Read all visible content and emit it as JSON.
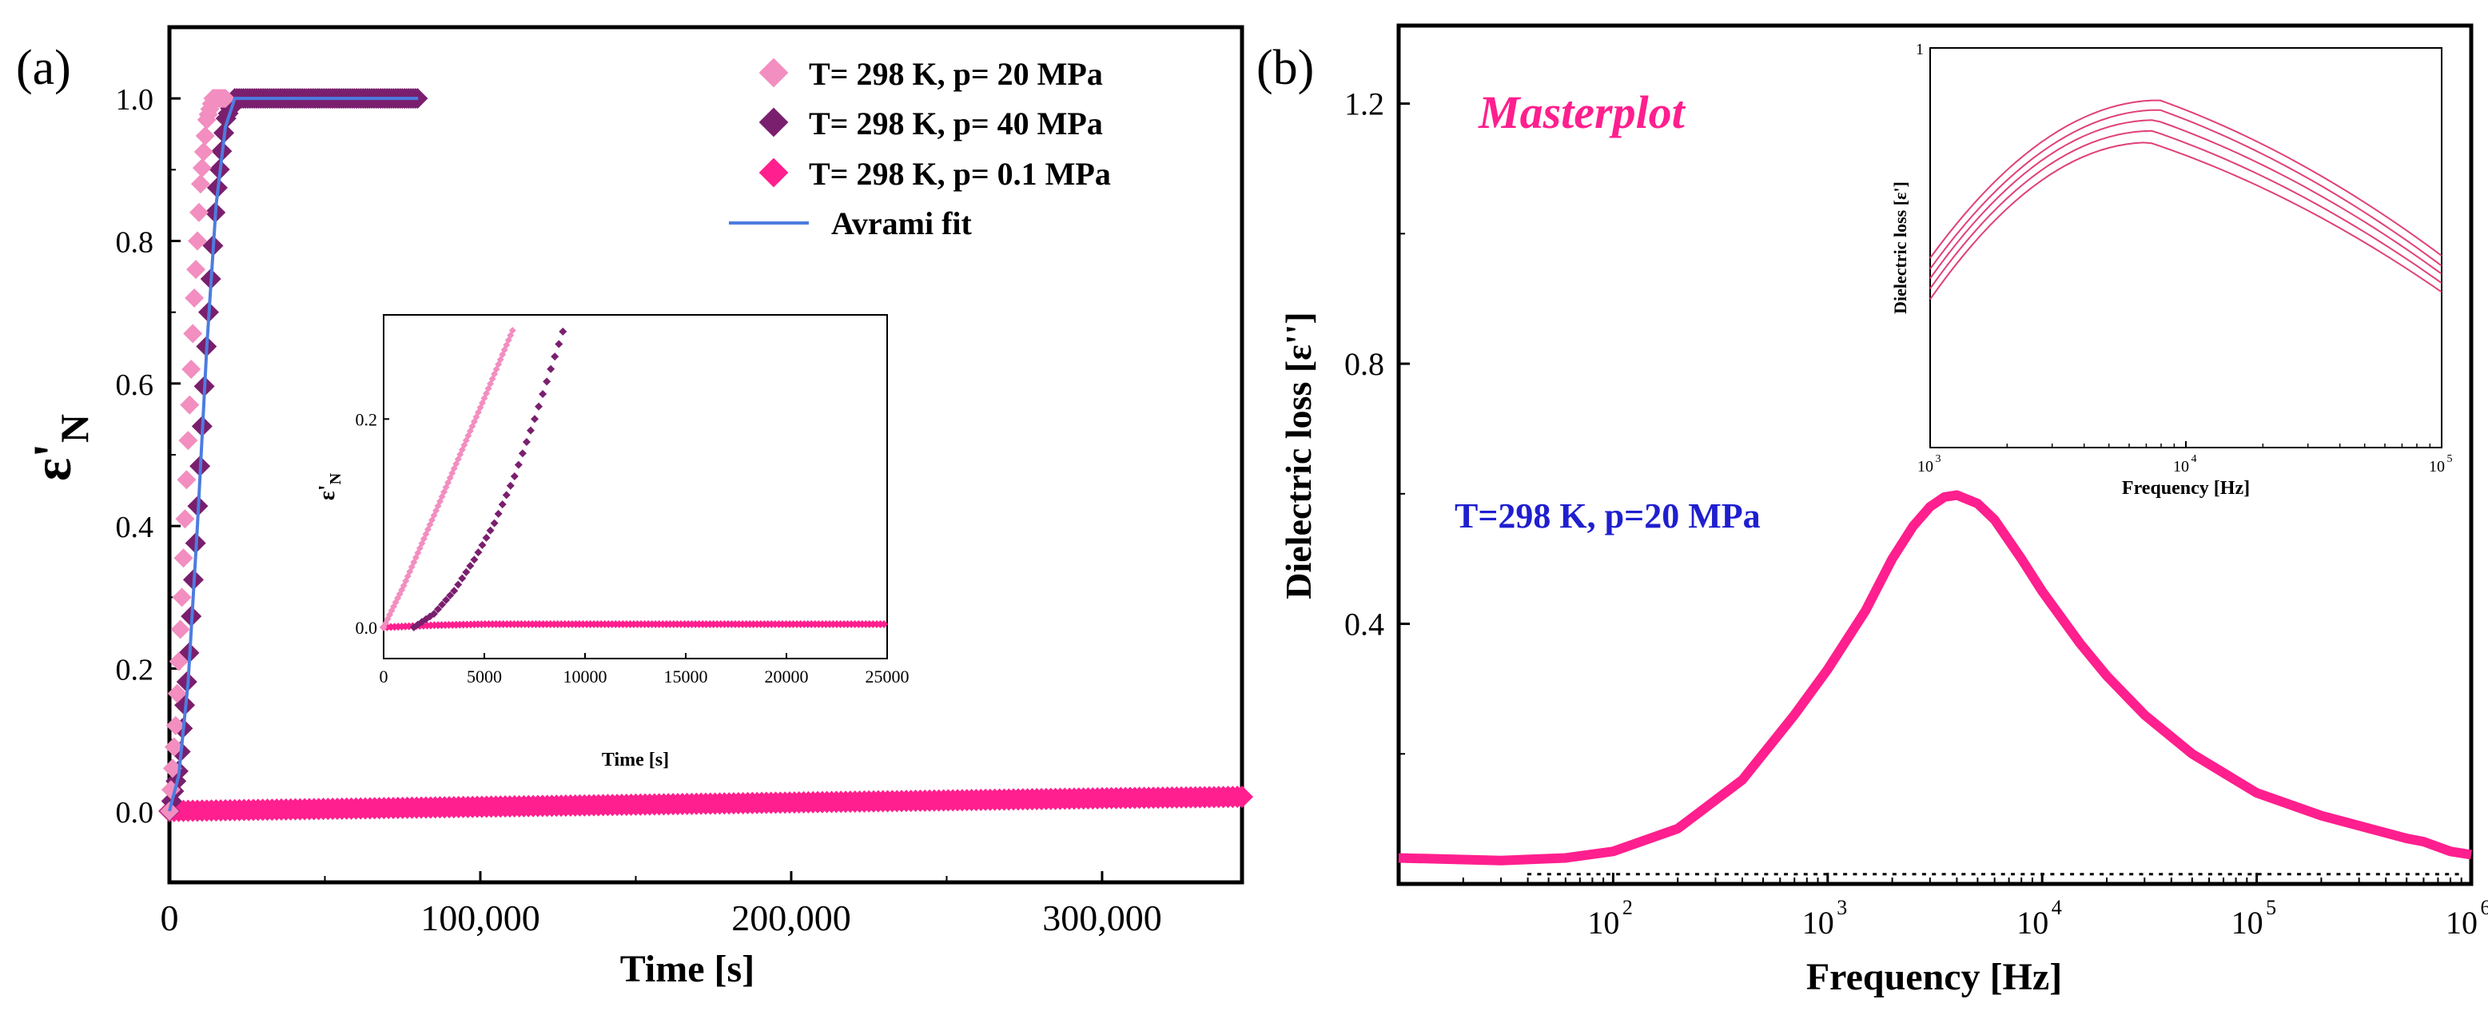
{
  "figure_title": "",
  "colors": {
    "light_pink": "#f28ec0",
    "purple": "#7a1f6e",
    "hot_pink": "#ff1f8e",
    "fit_blue": "#4d7ce0",
    "annotation_blue": "#1f1fcf",
    "masterplot_pink": "#ff1f8e"
  },
  "chart_data": [
    {
      "panel_label": "(a)",
      "type": "scatter",
      "title": "",
      "xlabel": "Time  [s]",
      "ylabel_main": "ε'",
      "ylabel_sub": "N",
      "xlim": [
        0,
        345000
      ],
      "ylim": [
        -0.1,
        1.1
      ],
      "x_ticks": [
        0,
        100000,
        200000,
        300000
      ],
      "x_tick_labels": [
        "0",
        "100,000",
        "200,000",
        "300,000"
      ],
      "y_ticks": [
        0.0,
        0.2,
        0.4,
        0.6,
        0.8,
        1.0
      ],
      "y_tick_labels": [
        "0.0",
        "0.2",
        "0.4",
        "0.6",
        "0.8",
        "1.0"
      ],
      "legend_position": "top-right",
      "series": [
        {
          "name": "T= 298 K, p= 20 MPa",
          "color": "#f28ec0",
          "marker": "diamond",
          "x": [
            0,
            2000,
            4000,
            6000,
            8000,
            10000,
            12000,
            14000,
            16000,
            18000
          ],
          "y": [
            0.0,
            0.12,
            0.3,
            0.52,
            0.72,
            0.88,
            0.97,
            1.0,
            1.0,
            1.0
          ]
        },
        {
          "name": "T= 298 K, p= 40 MPa",
          "color": "#7a1f6e",
          "marker": "diamond",
          "x": [
            0,
            3000,
            6000,
            9000,
            12000,
            15000,
            18000,
            21000,
            30000,
            45000,
            60000,
            80000
          ],
          "y": [
            0.0,
            0.06,
            0.2,
            0.42,
            0.66,
            0.86,
            0.97,
            1.0,
            1.0,
            1.0,
            1.0,
            1.0
          ]
        },
        {
          "name": "T= 298 K, p= 0.1 MPa",
          "color": "#ff1f8e",
          "marker": "diamond",
          "x": [
            0,
            50000,
            100000,
            150000,
            200000,
            250000,
            300000,
            345000
          ],
          "y": [
            0.0,
            0.003,
            0.006,
            0.009,
            0.012,
            0.015,
            0.018,
            0.02
          ]
        },
        {
          "name": "Avrami fit",
          "color": "#4d7ce0",
          "marker": "line",
          "x": [
            0,
            3000,
            6000,
            9000,
            12000,
            15000,
            18000,
            21000,
            24000,
            50000,
            80000
          ],
          "y": [
            0.0,
            0.05,
            0.18,
            0.4,
            0.65,
            0.85,
            0.96,
            1.0,
            1.0,
            1.0,
            1.0
          ]
        }
      ],
      "inset": {
        "type": "scatter",
        "xlabel": "Time  [s]",
        "ylabel_main": "ε'",
        "ylabel_sub": "N",
        "xlim": [
          0,
          25000
        ],
        "ylim": [
          -0.03,
          0.3
        ],
        "x_ticks": [
          0,
          5000,
          10000,
          15000,
          20000,
          25000
        ],
        "x_tick_labels": [
          "0",
          "5000",
          "10000",
          "15000",
          "20000",
          "25000"
        ],
        "y_ticks": [
          0.0,
          0.2
        ],
        "y_tick_labels": [
          "0.0",
          "0.2"
        ],
        "series": [
          {
            "color": "#f28ec0",
            "x": [
              0,
              1000,
              2000,
              3000,
              4000,
              5000,
              6400
            ],
            "y": [
              0.0,
              0.04,
              0.085,
              0.13,
              0.175,
              0.22,
              0.285
            ]
          },
          {
            "color": "#7a1f6e",
            "x": [
              1500,
              2500,
              3500,
              4500,
              5500,
              6500,
              7500,
              8500,
              9000
            ],
            "y": [
              0.0,
              0.013,
              0.035,
              0.065,
              0.1,
              0.145,
              0.2,
              0.26,
              0.29
            ]
          },
          {
            "color": "#ff1f8e",
            "x": [
              0,
              2500,
              5000,
              7500,
              10000,
              12500,
              15000,
              17500,
              20000,
              22500,
              25000
            ],
            "y": [
              0.0,
              0.002,
              0.003,
              0.003,
              0.003,
              0.003,
              0.003,
              0.003,
              0.003,
              0.003,
              0.003
            ]
          }
        ]
      }
    },
    {
      "panel_label": "(b)",
      "type": "line",
      "title": "",
      "annotation": "Masterplot",
      "condition_label": "T=298 K, p=20 MPa",
      "xlabel": "Frequency [Hz]",
      "ylabel": "Dielectric loss [ε'']",
      "x_scale": "log",
      "xlim": [
        10,
        1000000
      ],
      "ylim": [
        0.0,
        1.32
      ],
      "x_ticks": [
        100,
        1000,
        10000,
        100000,
        1000000
      ],
      "x_tick_labels": [
        "10",
        "10",
        "10",
        "10",
        "10"
      ],
      "x_tick_exponents": [
        "2",
        "3",
        "4",
        "5",
        "6"
      ],
      "y_ticks": [
        0.4,
        0.8,
        1.2
      ],
      "y_tick_labels": [
        "0.4",
        "0.8",
        "1.2"
      ],
      "series": [
        {
          "color": "#ff1f8e",
          "x": [
            10,
            30,
            60,
            100,
            200,
            400,
            700,
            1000,
            1500,
            2000,
            2500,
            3000,
            3500,
            4000,
            5000,
            6000,
            8000,
            10000,
            15000,
            20000,
            30000,
            50000,
            100000,
            200000,
            500000,
            600000,
            800000,
            1000000
          ],
          "y": [
            0.04,
            0.036,
            0.04,
            0.05,
            0.085,
            0.16,
            0.26,
            0.33,
            0.42,
            0.5,
            0.55,
            0.58,
            0.595,
            0.598,
            0.585,
            0.56,
            0.5,
            0.45,
            0.37,
            0.32,
            0.26,
            0.2,
            0.14,
            0.105,
            0.07,
            0.065,
            0.05,
            0.045
          ]
        }
      ],
      "inset": {
        "type": "line",
        "xlabel": "Frequency [Hz]",
        "ylabel": "Dielectric loss [ε']",
        "x_scale": "log",
        "y_scale": "log",
        "xlim": [
          1000,
          100000
        ],
        "ylim": [
          0.1,
          1.0
        ],
        "x_ticks": [
          1000,
          10000,
          100000
        ],
        "x_tick_labels": [
          "10",
          "10",
          "10"
        ],
        "x_tick_exponents": [
          "3",
          "4",
          "5"
        ],
        "y_ticks": [
          1.0
        ],
        "y_tick_labels": [
          "1"
        ],
        "series": [
          {
            "color": "#e0407a",
            "peak_x": 7900,
            "peak_y": 0.74,
            "y_at_1e3": 0.298,
            "y_at_1e5": 0.302
          },
          {
            "color": "#e0407a",
            "peak_x": 7900,
            "peak_y": 0.7,
            "y_at_1e3": 0.28,
            "y_at_1e5": 0.285
          },
          {
            "color": "#e0407a",
            "peak_x": 7600,
            "peak_y": 0.66,
            "y_at_1e3": 0.265,
            "y_at_1e5": 0.272
          },
          {
            "color": "#e0407a",
            "peak_x": 7400,
            "peak_y": 0.62,
            "y_at_1e3": 0.25,
            "y_at_1e5": 0.258
          },
          {
            "color": "#e0407a",
            "peak_x": 7200,
            "peak_y": 0.58,
            "y_at_1e3": 0.235,
            "y_at_1e5": 0.245
          }
        ]
      }
    }
  ]
}
